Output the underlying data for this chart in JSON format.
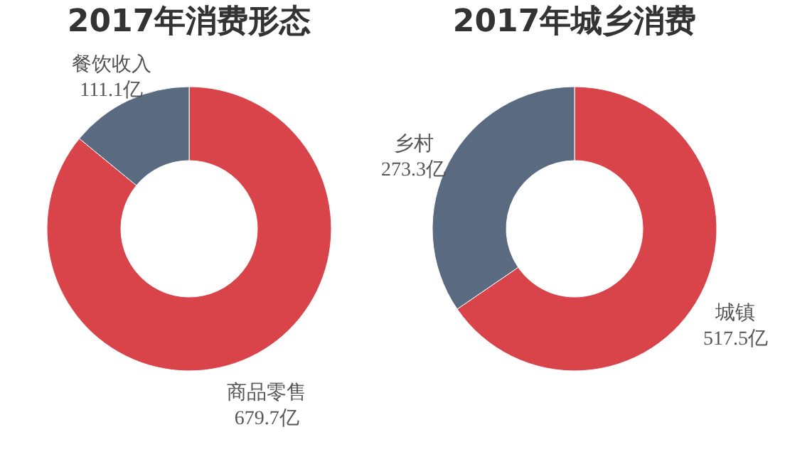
{
  "chart_data": [
    {
      "type": "donut",
      "title": "2017年消费形态",
      "categories": [
        "商品零售",
        "餐饮收入"
      ],
      "values": [
        679.7,
        111.1
      ],
      "colors": [
        "#d9444a",
        "#5a6a80"
      ],
      "value_labels": [
        "679.7亿",
        "111.1亿"
      ],
      "legend": false
    },
    {
      "type": "donut",
      "title": "2017年城乡消费",
      "categories": [
        "城镇",
        "乡村"
      ],
      "values": [
        517.5,
        273.3
      ],
      "colors": [
        "#d9444a",
        "#5a6a80"
      ],
      "value_labels": [
        "517.5亿",
        "273.3亿"
      ],
      "legend": false
    }
  ]
}
